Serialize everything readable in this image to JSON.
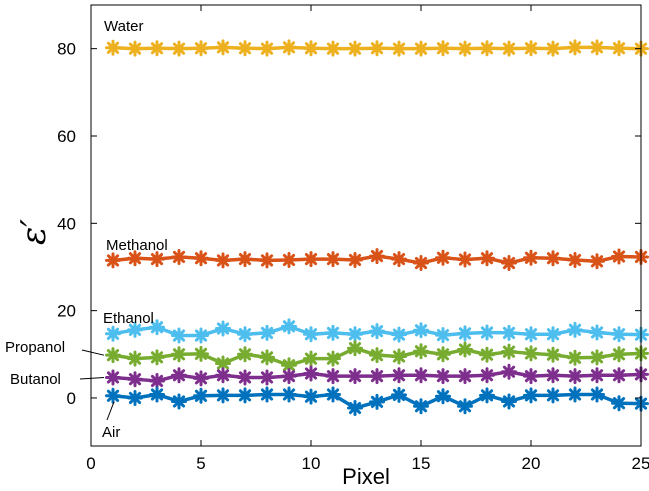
{
  "chart_data": {
    "type": "line",
    "title": "",
    "xlabel": "Pixel",
    "ylabel": "ε′",
    "xlim": [
      0,
      25
    ],
    "ylim": [
      -11,
      90
    ],
    "xticks": [
      0,
      5,
      10,
      15,
      20,
      25
    ],
    "yticks": [
      0,
      20,
      40,
      60,
      80
    ],
    "x": [
      1,
      2,
      3,
      4,
      5,
      6,
      7,
      8,
      9,
      10,
      11,
      12,
      13,
      14,
      15,
      16,
      17,
      18,
      19,
      20,
      21,
      22,
      23,
      24,
      25
    ],
    "grid": false,
    "legend": "none",
    "series": [
      {
        "name": "Water",
        "color": "#EDB120",
        "values": [
          80.2,
          80.0,
          80.1,
          80.0,
          80.1,
          80.3,
          80.1,
          80.0,
          80.3,
          80.1,
          80.0,
          80.0,
          80.1,
          80.0,
          80.0,
          80.1,
          80.0,
          80.1,
          80.0,
          80.1,
          80.0,
          80.3,
          80.3,
          80.1,
          80.0
        ]
      },
      {
        "name": "Methanol",
        "color": "#D95319",
        "values": [
          31.5,
          32.0,
          31.8,
          32.3,
          32.0,
          31.5,
          31.8,
          31.5,
          31.6,
          31.8,
          31.8,
          31.6,
          32.5,
          31.8,
          30.9,
          32.1,
          31.7,
          32.0,
          30.9,
          32.1,
          32.0,
          31.6,
          31.3,
          32.4,
          32.3
        ]
      },
      {
        "name": "Ethanol",
        "color": "#4DBEEE",
        "values": [
          14.7,
          15.6,
          16.2,
          14.3,
          14.3,
          15.9,
          14.6,
          14.9,
          16.4,
          14.6,
          14.9,
          14.6,
          15.3,
          14.5,
          15.5,
          14.4,
          14.8,
          15.0,
          14.9,
          14.6,
          14.6,
          15.6,
          15.0,
          14.6,
          14.5
        ]
      },
      {
        "name": "Propanol",
        "color": "#77AC30",
        "values": [
          9.8,
          9.0,
          9.3,
          10.0,
          10.1,
          7.9,
          10.0,
          9.3,
          7.5,
          9.0,
          9.0,
          11.4,
          9.8,
          9.5,
          10.7,
          10.0,
          11.1,
          9.9,
          10.6,
          10.2,
          9.9,
          9.2,
          9.3,
          10.0,
          10.2
        ]
      },
      {
        "name": "Butanol",
        "color": "#7E2F8E",
        "values": [
          4.7,
          4.3,
          3.9,
          5.2,
          4.5,
          5.2,
          4.7,
          4.7,
          5.0,
          5.6,
          5.0,
          5.0,
          5.0,
          5.2,
          5.2,
          5.0,
          5.0,
          5.2,
          6.0,
          5.0,
          5.2,
          5.0,
          5.2,
          5.2,
          5.4
        ]
      },
      {
        "name": "Air",
        "color": "#0072BD",
        "values": [
          0.5,
          0.0,
          0.8,
          -0.8,
          0.5,
          0.6,
          0.6,
          0.8,
          0.8,
          0.3,
          0.8,
          -2.3,
          -0.9,
          0.7,
          -1.9,
          0.4,
          -1.9,
          0.6,
          -0.8,
          0.6,
          0.6,
          0.8,
          0.8,
          -1.2,
          -1.3
        ]
      }
    ],
    "annotations": [
      "Water",
      "Methanol",
      "Ethanol",
      "Propanol",
      "Butanol",
      "Air"
    ]
  }
}
